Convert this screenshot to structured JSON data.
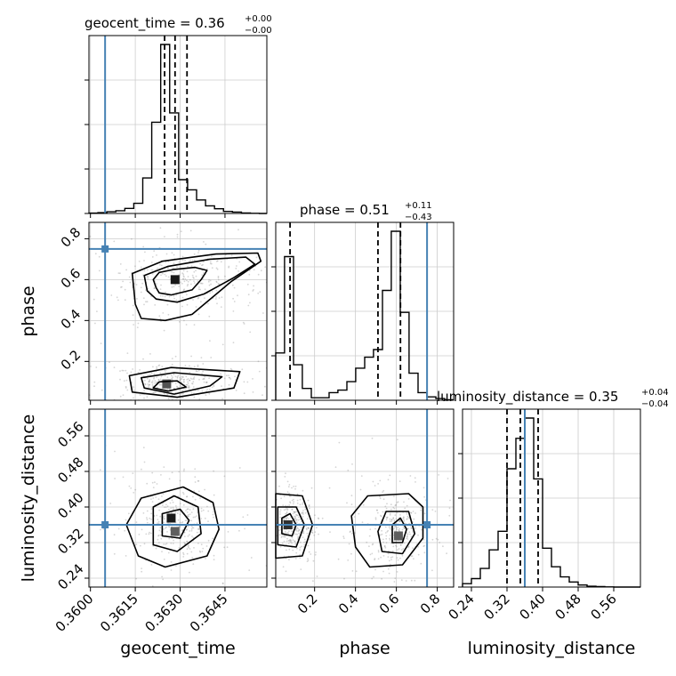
{
  "chart_data": {
    "type": "corner",
    "grid": true,
    "colors": {
      "truth": "#4682b4",
      "hist": "#000000",
      "scatter": "#888888",
      "grid": "#cccccc"
    },
    "parameters": [
      {
        "name": "geocent_time",
        "title_prefix": "geocent_time = 0.36",
        "title_upper": "+0.00",
        "title_lower": "−0.00",
        "range": [
          0.35995,
          0.3659
        ],
        "ticks": [
          0.36,
          0.3615,
          0.363,
          0.3645
        ],
        "tick_labels": [
          "0.3600",
          "0.3615",
          "0.3630",
          "0.3645"
        ],
        "truth": 0.36049,
        "quantiles": [
          0.36248,
          0.36283,
          0.36323
        ],
        "hist_bins": [
          0.35995,
          0.36025,
          0.36055,
          0.36085,
          0.36115,
          0.36145,
          0.36175,
          0.36205,
          0.36235,
          0.36265,
          0.36295,
          0.36325,
          0.36355,
          0.36385,
          0.36415,
          0.36445,
          0.36475,
          0.36505,
          0.36535,
          0.36565,
          0.3659
        ],
        "hist_counts": [
          0.002,
          0.005,
          0.01,
          0.016,
          0.03,
          0.06,
          0.21,
          0.54,
          1.0,
          0.595,
          0.2,
          0.14,
          0.08,
          0.045,
          0.028,
          0.012,
          0.008,
          0.003,
          0.001,
          0.0
        ]
      },
      {
        "name": "phase",
        "title_prefix": "phase = 0.51",
        "title_upper": "+0.11",
        "title_lower": "−0.43",
        "range": [
          0.01,
          0.88
        ],
        "ticks": [
          0.2,
          0.4,
          0.6,
          0.8
        ],
        "tick_labels": [
          "0.2",
          "0.4",
          "0.6",
          "0.8"
        ],
        "truth": 0.75,
        "quantiles": [
          0.08,
          0.51,
          0.62
        ],
        "hist_bins": [
          0.01,
          0.053,
          0.097,
          0.14,
          0.184,
          0.227,
          0.271,
          0.314,
          0.358,
          0.401,
          0.445,
          0.488,
          0.532,
          0.575,
          0.619,
          0.662,
          0.706,
          0.749,
          0.793,
          0.836,
          0.88
        ],
        "hist_counts": [
          0.28,
          0.85,
          0.21,
          0.07,
          0.015,
          0.015,
          0.045,
          0.06,
          0.11,
          0.19,
          0.255,
          0.3,
          0.65,
          1.0,
          0.52,
          0.16,
          0.045,
          0.02,
          0.01,
          0.003
        ]
      },
      {
        "name": "luminosity_distance",
        "title_prefix": "luminosity_distance = 0.35",
        "title_upper": "+0.04",
        "title_lower": "−0.04",
        "range": [
          0.22,
          0.62
        ],
        "ticks": [
          0.24,
          0.32,
          0.4,
          0.48,
          0.56
        ],
        "tick_labels": [
          "0.24",
          "0.32",
          "0.40",
          "0.48",
          "0.56"
        ],
        "truth": 0.36,
        "quantiles": [
          0.32,
          0.35,
          0.39
        ],
        "hist_bins": [
          0.22,
          0.24,
          0.26,
          0.28,
          0.3,
          0.32,
          0.34,
          0.36,
          0.38,
          0.4,
          0.42,
          0.44,
          0.46,
          0.48,
          0.5,
          0.52,
          0.54,
          0.56,
          0.58,
          0.6,
          0.62
        ],
        "hist_counts": [
          0.02,
          0.05,
          0.11,
          0.22,
          0.33,
          0.7,
          0.88,
          1.0,
          0.64,
          0.23,
          0.12,
          0.06,
          0.03,
          0.012,
          0.005,
          0.003,
          0.001,
          0.0,
          0.0,
          0.0
        ]
      }
    ],
    "pairs": [
      {
        "x_param": 0,
        "y_param": 1,
        "truth": [
          0.36049,
          0.75
        ],
        "density_cells": [
          {
            "x": 0.36283,
            "y": 0.6,
            "level": 1.0
          },
          {
            "x": 0.36255,
            "y": 0.09,
            "level": 0.75
          }
        ],
        "contours": [
          [
            [
              0.3622,
              0.56
            ],
            [
              0.3623,
              0.535
            ],
            [
              0.3627,
              0.525
            ],
            [
              0.3634,
              0.55
            ],
            [
              0.3637,
              0.6
            ],
            [
              0.3639,
              0.645
            ],
            [
              0.3635,
              0.66
            ],
            [
              0.3628,
              0.65
            ],
            [
              0.3623,
              0.635
            ],
            [
              0.3621,
              0.6
            ]
          ],
          [
            [
              0.3619,
              0.545
            ],
            [
              0.3622,
              0.505
            ],
            [
              0.3629,
              0.49
            ],
            [
              0.3638,
              0.53
            ],
            [
              0.3648,
              0.61
            ],
            [
              0.3655,
              0.675
            ],
            [
              0.3652,
              0.71
            ],
            [
              0.364,
              0.7
            ],
            [
              0.3626,
              0.665
            ],
            [
              0.3618,
              0.62
            ]
          ],
          [
            [
              0.3615,
              0.48
            ],
            [
              0.3617,
              0.41
            ],
            [
              0.3625,
              0.4
            ],
            [
              0.3634,
              0.43
            ],
            [
              0.3647,
              0.59
            ],
            [
              0.3657,
              0.69
            ],
            [
              0.3656,
              0.73
            ],
            [
              0.3642,
              0.725
            ],
            [
              0.3624,
              0.69
            ],
            [
              0.3614,
              0.63
            ]
          ],
          [
            [
              0.3621,
              0.07
            ],
            [
              0.3626,
              0.055
            ],
            [
              0.3632,
              0.075
            ],
            [
              0.3629,
              0.105
            ],
            [
              0.3623,
              0.1
            ]
          ],
          [
            [
              0.3618,
              0.07
            ],
            [
              0.3628,
              0.04
            ],
            [
              0.364,
              0.08
            ],
            [
              0.3644,
              0.125
            ],
            [
              0.3628,
              0.145
            ],
            [
              0.3617,
              0.12
            ]
          ],
          [
            [
              0.3614,
              0.05
            ],
            [
              0.3629,
              0.025
            ],
            [
              0.3648,
              0.07
            ],
            [
              0.365,
              0.15
            ],
            [
              0.3627,
              0.17
            ],
            [
              0.3613,
              0.13
            ]
          ]
        ]
      },
      {
        "x_param": 0,
        "y_param": 2,
        "truth": [
          0.36049,
          0.36
        ],
        "density_cells": [
          {
            "x": 0.3627,
            "y": 0.375,
            "level": 1.0
          },
          {
            "x": 0.36283,
            "y": 0.345,
            "level": 0.7
          }
        ],
        "contours": [
          [
            [
              0.3624,
              0.335
            ],
            [
              0.363,
              0.33
            ],
            [
              0.3633,
              0.37
            ],
            [
              0.363,
              0.395
            ],
            [
              0.3624,
              0.385
            ]
          ],
          [
            [
              0.3621,
              0.315
            ],
            [
              0.3629,
              0.3
            ],
            [
              0.3637,
              0.34
            ],
            [
              0.3636,
              0.4
            ],
            [
              0.3628,
              0.425
            ],
            [
              0.3621,
              0.4
            ]
          ],
          [
            [
              0.3616,
              0.29
            ],
            [
              0.3625,
              0.265
            ],
            [
              0.3639,
              0.29
            ],
            [
              0.3643,
              0.35
            ],
            [
              0.3641,
              0.41
            ],
            [
              0.3631,
              0.445
            ],
            [
              0.3617,
              0.42
            ],
            [
              0.3612,
              0.36
            ]
          ]
        ]
      },
      {
        "x_param": 1,
        "y_param": 2,
        "truth": [
          0.75,
          0.36
        ],
        "density_cells": [
          {
            "x": 0.61,
            "y": 0.335,
            "level": 0.7
          },
          {
            "x": 0.07,
            "y": 0.36,
            "level": 0.9
          }
        ],
        "contours": [
          [
            [
              0.58,
              0.32
            ],
            [
              0.63,
              0.32
            ],
            [
              0.65,
              0.35
            ],
            [
              0.62,
              0.375
            ],
            [
              0.58,
              0.36
            ]
          ],
          [
            [
              0.53,
              0.3
            ],
            [
              0.63,
              0.295
            ],
            [
              0.69,
              0.34
            ],
            [
              0.66,
              0.39
            ],
            [
              0.55,
              0.39
            ],
            [
              0.51,
              0.345
            ]
          ],
          [
            [
              0.4,
              0.31
            ],
            [
              0.47,
              0.265
            ],
            [
              0.63,
              0.27
            ],
            [
              0.73,
              0.33
            ],
            [
              0.73,
              0.4
            ],
            [
              0.66,
              0.43
            ],
            [
              0.46,
              0.425
            ],
            [
              0.38,
              0.38
            ]
          ],
          [
            [
              0.04,
              0.34
            ],
            [
              0.09,
              0.335
            ],
            [
              0.11,
              0.36
            ],
            [
              0.08,
              0.385
            ],
            [
              0.04,
              0.375
            ]
          ],
          [
            [
              0.02,
              0.315
            ],
            [
              0.11,
              0.31
            ],
            [
              0.15,
              0.36
            ],
            [
              0.11,
              0.4
            ],
            [
              0.02,
              0.4
            ]
          ],
          [
            [
              0.01,
              0.285
            ],
            [
              0.14,
              0.29
            ],
            [
              0.19,
              0.36
            ],
            [
              0.14,
              0.425
            ],
            [
              0.01,
              0.43
            ]
          ]
        ]
      }
    ]
  }
}
